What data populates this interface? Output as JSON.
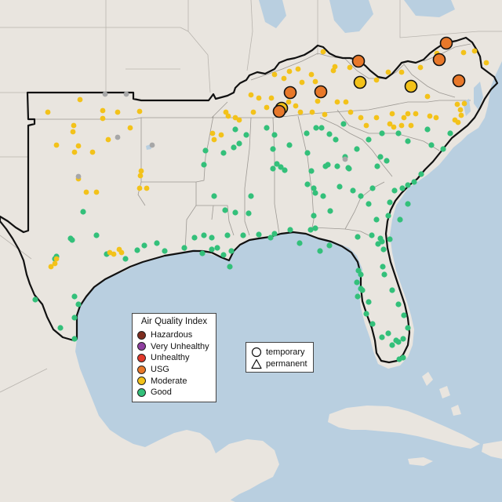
{
  "legend": {
    "title": "Air Quality Index",
    "categories": [
      {
        "label": "Hazardous",
        "color": "#7e2d1f"
      },
      {
        "label": "Very Unhealthy",
        "color": "#8f3fa0"
      },
      {
        "label": "Unhealthy",
        "color": "#e2392b"
      },
      {
        "label": "USG",
        "color": "#e8782a"
      },
      {
        "label": "Moderate",
        "color": "#f3c21a"
      },
      {
        "label": "Good",
        "color": "#33c07a"
      }
    ]
  },
  "shape_legend": {
    "items": [
      {
        "label": "temporary",
        "shape": "circle-icon"
      },
      {
        "label": "permanent",
        "shape": "triangle-icon"
      }
    ]
  },
  "colors": {
    "water": "#b9cfe0",
    "land": "#e9e5df",
    "good": "#33c07a",
    "moderate": "#f3c21a",
    "usg": "#e8782a",
    "nodata": "#a7a7a7"
  },
  "sites": {
    "usg": [
      [
        569,
        55
      ],
      [
        560,
        76
      ],
      [
        457,
        78
      ],
      [
        585,
        103
      ],
      [
        370,
        118
      ],
      [
        409,
        117
      ],
      [
        356,
        142
      ]
    ],
    "moderate_large": [
      [
        459,
        105
      ],
      [
        524,
        110
      ],
      [
        359,
        138
      ]
    ],
    "moderate": [
      [
        61,
        143
      ],
      [
        102,
        127
      ],
      [
        131,
        141
      ],
      [
        131,
        151
      ],
      [
        94,
        160
      ],
      [
        93,
        168
      ],
      [
        150,
        143
      ],
      [
        166,
        163
      ],
      [
        138,
        178
      ],
      [
        100,
        186
      ],
      [
        95,
        194
      ],
      [
        118,
        194
      ],
      [
        72,
        185
      ],
      [
        178,
        142
      ],
      [
        180,
        218
      ],
      [
        178,
        240
      ],
      [
        187,
        240
      ],
      [
        100,
        228
      ],
      [
        110,
        245
      ],
      [
        123,
        245
      ],
      [
        179,
        224
      ],
      [
        72,
        330
      ],
      [
        70,
        336
      ],
      [
        65,
        340
      ],
      [
        140,
        322
      ],
      [
        145,
        324
      ],
      [
        155,
        322
      ],
      [
        152,
        318
      ],
      [
        300,
        150
      ],
      [
        291,
        148
      ],
      [
        288,
        143
      ],
      [
        305,
        153
      ],
      [
        323,
        143
      ],
      [
        340,
        137
      ],
      [
        377,
        135
      ],
      [
        383,
        143
      ],
      [
        368,
        130
      ],
      [
        398,
        143
      ],
      [
        414,
        146
      ],
      [
        405,
        129
      ],
      [
        430,
        130
      ],
      [
        441,
        130
      ],
      [
        447,
        143
      ],
      [
        460,
        150
      ],
      [
        467,
        160
      ],
      [
        480,
        150
      ],
      [
        497,
        158
      ],
      [
        500,
        145
      ],
      [
        502,
        162
      ],
      [
        512,
        160
      ],
      [
        520,
        145
      ],
      [
        515,
        150
      ],
      [
        524,
        160
      ],
      [
        530,
        145
      ],
      [
        548,
        148
      ],
      [
        556,
        150
      ],
      [
        580,
        153
      ],
      [
        583,
        133
      ],
      [
        587,
        140
      ],
      [
        620,
        80
      ],
      [
        605,
        65
      ],
      [
        591,
        67
      ],
      [
        557,
        68
      ],
      [
        385,
        105
      ],
      [
        397,
        95
      ],
      [
        350,
        95
      ],
      [
        330,
        125
      ],
      [
        425,
        90
      ],
      [
        380,
        88
      ],
      [
        412,
        66
      ],
      [
        427,
        85
      ],
      [
        480,
        102
      ],
      [
        495,
        92
      ],
      [
        512,
        92
      ],
      [
        536,
        86
      ],
      [
        545,
        123
      ],
      [
        584,
        156
      ],
      [
        588,
        147
      ],
      [
        592,
        132
      ],
      [
        271,
        170
      ],
      [
        273,
        178
      ],
      [
        282,
        172
      ],
      [
        320,
        121
      ],
      [
        346,
        125
      ],
      [
        362,
        100
      ],
      [
        369,
        91
      ],
      [
        402,
        104
      ],
      [
        446,
        86
      ]
    ],
    "good": [
      [
        340,
        163
      ],
      [
        350,
        172
      ],
      [
        369,
        185
      ],
      [
        348,
        190
      ],
      [
        353,
        209
      ],
      [
        358,
        213
      ],
      [
        363,
        217
      ],
      [
        348,
        215
      ],
      [
        320,
        250
      ],
      [
        317,
        272
      ],
      [
        300,
        271
      ],
      [
        287,
        268
      ],
      [
        273,
        250
      ],
      [
        260,
        210
      ],
      [
        262,
        192
      ],
      [
        298,
        188
      ],
      [
        305,
        183
      ],
      [
        314,
        172
      ],
      [
        285,
        195
      ],
      [
        300,
        165
      ],
      [
        391,
        170
      ],
      [
        403,
        163
      ],
      [
        410,
        163
      ],
      [
        420,
        171
      ],
      [
        438,
        158
      ],
      [
        470,
        178
      ],
      [
        487,
        170
      ],
      [
        508,
        170
      ],
      [
        520,
        180
      ],
      [
        545,
        165
      ],
      [
        550,
        185
      ],
      [
        574,
        170
      ],
      [
        565,
        190
      ],
      [
        392,
        195
      ],
      [
        418,
        210
      ],
      [
        428,
        178
      ],
      [
        440,
        200
      ],
      [
        445,
        215
      ],
      [
        485,
        200
      ],
      [
        493,
        205
      ],
      [
        481,
        212
      ],
      [
        455,
        190
      ],
      [
        433,
        238
      ],
      [
        450,
        243
      ],
      [
        460,
        250
      ],
      [
        497,
        258
      ],
      [
        503,
        243
      ],
      [
        513,
        240
      ],
      [
        520,
        236
      ],
      [
        528,
        232
      ],
      [
        537,
        222
      ],
      [
        495,
        275
      ],
      [
        485,
        304
      ],
      [
        482,
        311
      ],
      [
        489,
        318
      ],
      [
        487,
        308
      ],
      [
        474,
        300
      ],
      [
        456,
        302
      ],
      [
        400,
        240
      ],
      [
        402,
        246
      ],
      [
        421,
        269
      ],
      [
        400,
        275
      ],
      [
        396,
        293
      ],
      [
        370,
        293
      ],
      [
        350,
        298
      ],
      [
        345,
        303
      ],
      [
        330,
        299
      ],
      [
        310,
        300
      ],
      [
        290,
        300
      ],
      [
        295,
        320
      ],
      [
        293,
        340
      ],
      [
        285,
        325
      ],
      [
        270,
        318
      ],
      [
        277,
        316
      ],
      [
        270,
        303
      ],
      [
        260,
        300
      ],
      [
        248,
        303
      ],
      [
        258,
        323
      ],
      [
        235,
        316
      ],
      [
        210,
        320
      ],
      [
        200,
        310
      ],
      [
        184,
        313
      ],
      [
        175,
        319
      ],
      [
        160,
        330
      ],
      [
        136,
        324
      ],
      [
        123,
        300
      ],
      [
        106,
        270
      ],
      [
        90,
        304
      ],
      [
        92,
        306
      ],
      [
        72,
        327
      ],
      [
        70,
        330
      ],
      [
        45,
        382
      ],
      [
        95,
        378
      ],
      [
        100,
        388
      ],
      [
        95,
        405
      ],
      [
        77,
        418
      ],
      [
        95,
        432
      ],
      [
        457,
        345
      ],
      [
        460,
        368
      ],
      [
        462,
        370
      ],
      [
        456,
        378
      ],
      [
        467,
        400
      ],
      [
        475,
        413
      ],
      [
        487,
        430
      ],
      [
        495,
        425
      ],
      [
        500,
        440
      ],
      [
        505,
        434
      ],
      [
        514,
        432
      ],
      [
        508,
        436
      ],
      [
        509,
        458
      ],
      [
        514,
        456
      ],
      [
        520,
        418
      ],
      [
        515,
        402
      ],
      [
        508,
        388
      ],
      [
        488,
        340
      ],
      [
        490,
        350
      ],
      [
        500,
        370
      ],
      [
        470,
        385
      ],
      [
        455,
        360
      ],
      [
        460,
        350
      ],
      [
        420,
        313
      ],
      [
        408,
        320
      ],
      [
        382,
        310
      ],
      [
        402,
        291
      ],
      [
        497,
        305
      ],
      [
        510,
        280
      ],
      [
        480,
        280
      ],
      [
        470,
        260
      ],
      [
        475,
        240
      ],
      [
        444,
        214
      ],
      [
        430,
        212
      ],
      [
        415,
        212
      ],
      [
        397,
        218
      ],
      [
        392,
        235
      ],
      [
        412,
        250
      ],
      [
        520,
        260
      ]
    ],
    "nodata": [
      [
        134,
        120
      ],
      [
        161,
        120
      ],
      [
        194,
        185
      ],
      [
        440,
        203
      ],
      [
        100,
        225
      ],
      [
        150,
        175
      ]
    ]
  }
}
